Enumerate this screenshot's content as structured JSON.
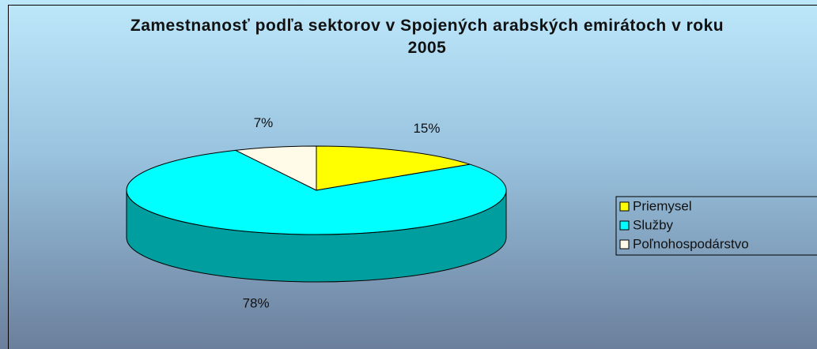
{
  "chart_data": {
    "type": "pie",
    "pie_3d": true,
    "title": "Zamestnanosť podľa sektorov v Spojených arabských emirátoch v roku 2005",
    "categories": [
      "Priemysel",
      "Služby",
      "Poľnohospodárstvo"
    ],
    "values": [
      15,
      78,
      7
    ],
    "value_labels": [
      "15%",
      "78%",
      "7%"
    ],
    "colors": [
      "#ffff00",
      "#00ffff",
      "#fffbe8"
    ],
    "legend": "right"
  }
}
